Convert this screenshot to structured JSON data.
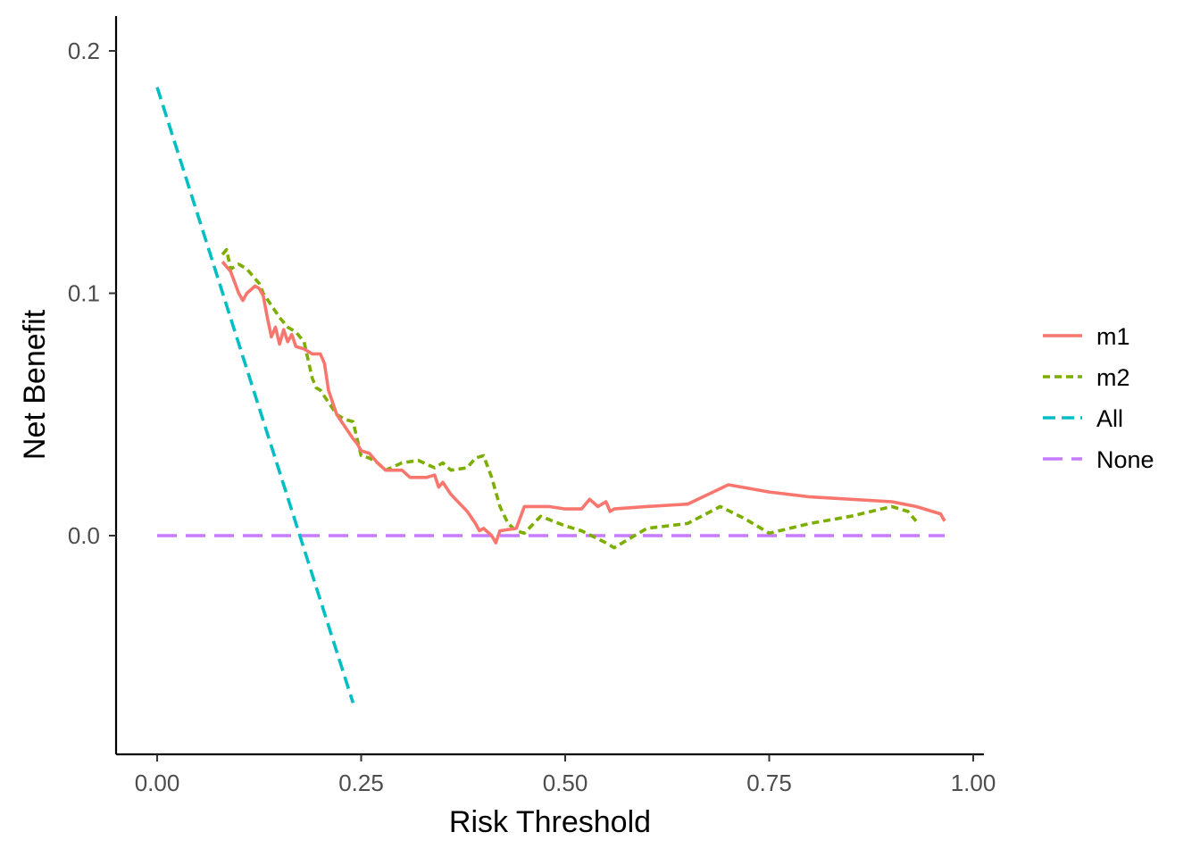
{
  "chart_data": {
    "type": "line",
    "title": "",
    "xlabel": "Risk Threshold",
    "ylabel": "Net Benefit",
    "xlim": [
      -0.05,
      1.0
    ],
    "ylim": [
      -0.09,
      0.215
    ],
    "xticks": [
      0.0,
      0.25,
      0.5,
      0.75,
      1.0
    ],
    "xtick_labels": [
      "0.00",
      "0.25",
      "0.50",
      "0.75",
      "1.00"
    ],
    "yticks": [
      0.0,
      0.1,
      0.2
    ],
    "ytick_labels": [
      "0.0",
      "0.1",
      "0.2"
    ],
    "grid": false,
    "legend_position": "right",
    "series": [
      {
        "name": "m1",
        "color": "#F8766D",
        "dash": "solid",
        "x": [
          0.08,
          0.09,
          0.1,
          0.105,
          0.11,
          0.12,
          0.125,
          0.13,
          0.135,
          0.14,
          0.145,
          0.15,
          0.155,
          0.16,
          0.165,
          0.17,
          0.18,
          0.19,
          0.195,
          0.2,
          0.205,
          0.21,
          0.22,
          0.23,
          0.24,
          0.245,
          0.25,
          0.26,
          0.27,
          0.28,
          0.3,
          0.31,
          0.33,
          0.34,
          0.345,
          0.35,
          0.36,
          0.38,
          0.39,
          0.395,
          0.4,
          0.41,
          0.415,
          0.42,
          0.44,
          0.45,
          0.46,
          0.48,
          0.5,
          0.52,
          0.53,
          0.54,
          0.55,
          0.555,
          0.56,
          0.6,
          0.65,
          0.7,
          0.75,
          0.8,
          0.9,
          0.93,
          0.96,
          0.965
        ],
        "values": [
          0.113,
          0.109,
          0.1,
          0.097,
          0.1,
          0.103,
          0.102,
          0.099,
          0.09,
          0.082,
          0.086,
          0.079,
          0.085,
          0.08,
          0.083,
          0.078,
          0.077,
          0.075,
          0.075,
          0.075,
          0.071,
          0.06,
          0.05,
          0.045,
          0.04,
          0.038,
          0.035,
          0.034,
          0.03,
          0.027,
          0.027,
          0.024,
          0.024,
          0.025,
          0.02,
          0.022,
          0.017,
          0.01,
          0.005,
          0.002,
          0.003,
          0.0,
          -0.003,
          0.002,
          0.003,
          0.012,
          0.012,
          0.012,
          0.011,
          0.011,
          0.015,
          0.012,
          0.014,
          0.01,
          0.011,
          0.012,
          0.013,
          0.021,
          0.018,
          0.016,
          0.014,
          0.012,
          0.009,
          0.006
        ]
      },
      {
        "name": "m2",
        "color": "#7CAE00",
        "dash": "dotted",
        "x": [
          0.08,
          0.085,
          0.09,
          0.1,
          0.11,
          0.12,
          0.125,
          0.13,
          0.14,
          0.15,
          0.16,
          0.17,
          0.18,
          0.19,
          0.195,
          0.2,
          0.21,
          0.22,
          0.23,
          0.24,
          0.25,
          0.26,
          0.27,
          0.28,
          0.3,
          0.32,
          0.34,
          0.35,
          0.36,
          0.38,
          0.39,
          0.4,
          0.41,
          0.42,
          0.43,
          0.44,
          0.45,
          0.47,
          0.5,
          0.52,
          0.55,
          0.56,
          0.6,
          0.65,
          0.69,
          0.72,
          0.75,
          0.8,
          0.85,
          0.9,
          0.92,
          0.93
        ],
        "values": [
          0.116,
          0.118,
          0.11,
          0.112,
          0.11,
          0.106,
          0.104,
          0.1,
          0.095,
          0.09,
          0.086,
          0.084,
          0.08,
          0.065,
          0.061,
          0.06,
          0.055,
          0.05,
          0.048,
          0.047,
          0.033,
          0.032,
          0.03,
          0.027,
          0.03,
          0.031,
          0.028,
          0.03,
          0.027,
          0.028,
          0.032,
          0.033,
          0.024,
          0.012,
          0.005,
          0.002,
          0.001,
          0.008,
          0.004,
          0.002,
          -0.003,
          -0.005,
          0.003,
          0.005,
          0.012,
          0.007,
          0.001,
          0.005,
          0.008,
          0.012,
          0.01,
          0.006
        ]
      },
      {
        "name": "All",
        "color": "#00BFC4",
        "dash": "dashed",
        "x": [
          0.0,
          0.24
        ],
        "values": [
          0.185,
          -0.069
        ]
      },
      {
        "name": "None",
        "color": "#C77CFF",
        "dash": "longdash",
        "x": [
          0.0,
          0.965
        ],
        "values": [
          0.0,
          0.0
        ]
      }
    ]
  }
}
